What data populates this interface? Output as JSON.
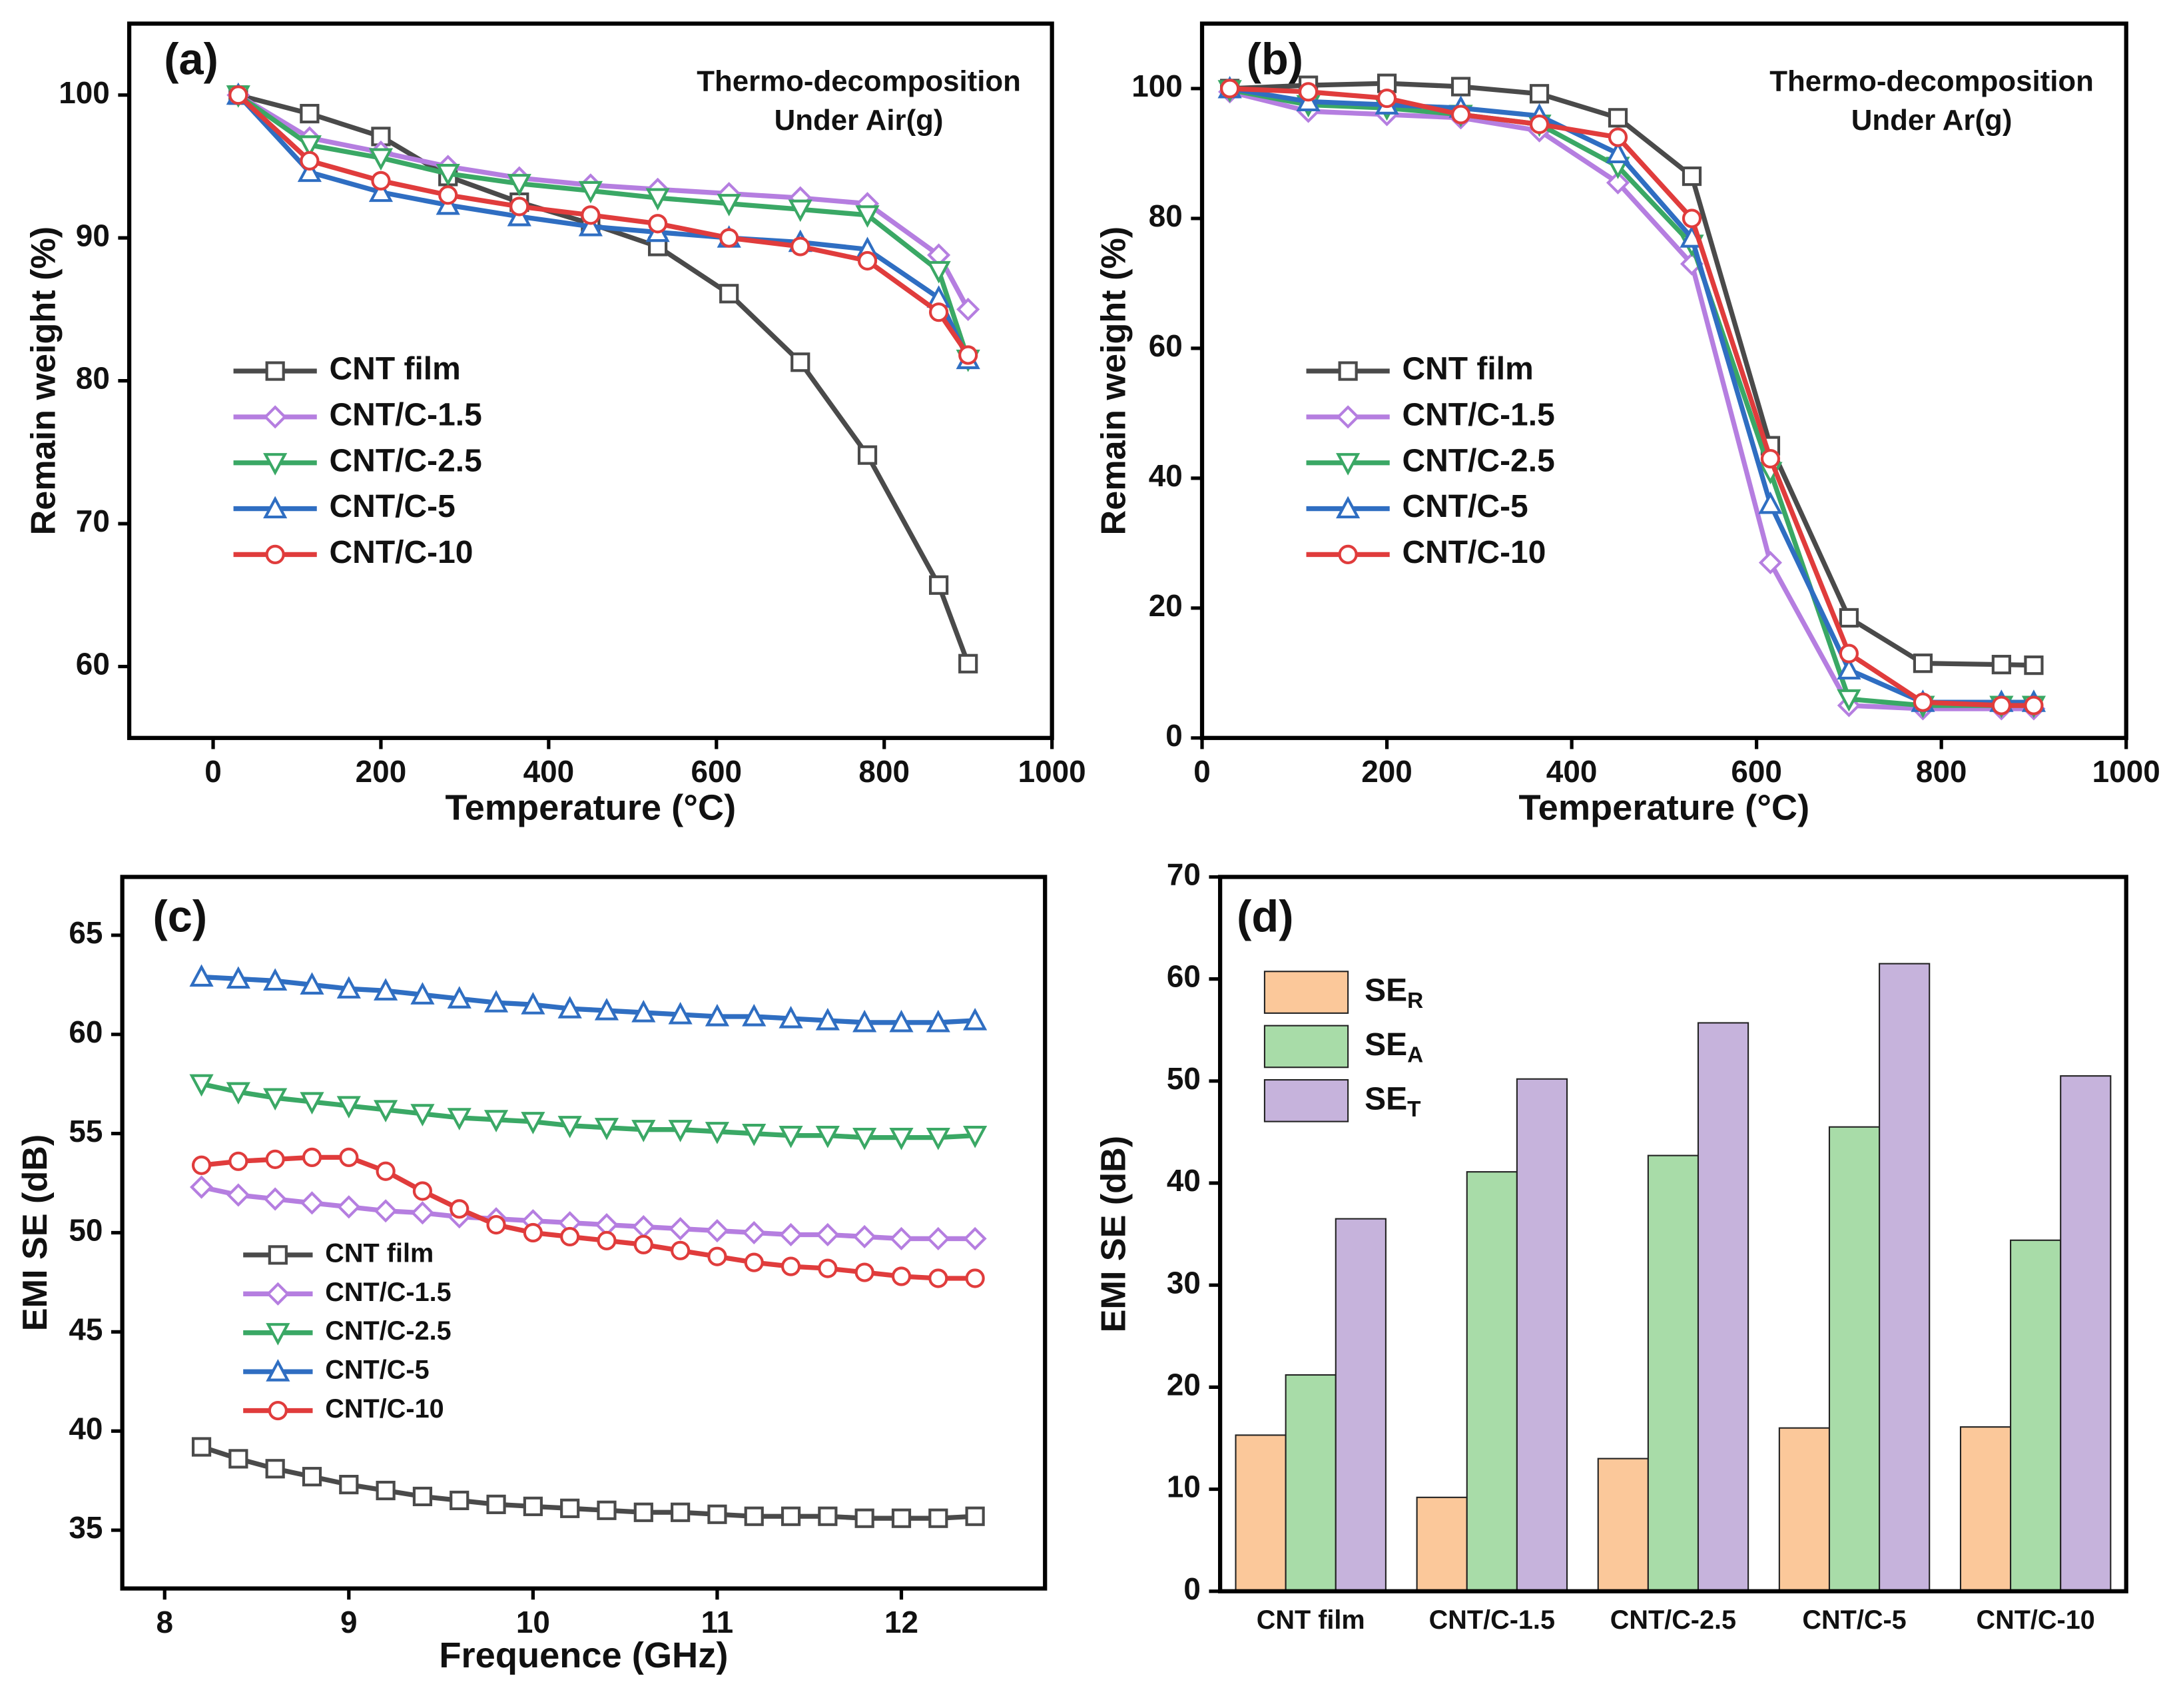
{
  "chart_data": [
    {
      "type": "line",
      "panel_label": "(a)",
      "annotation": [
        "Thermo-decomposition",
        "Under Air(g)"
      ],
      "xlabel": "Temperature (°C)",
      "ylabel": "Remain weight (%)",
      "xlim": [
        -100,
        1000
      ],
      "xticks": [
        0,
        200,
        400,
        600,
        800,
        1000
      ],
      "ylim": [
        55,
        105
      ],
      "yticks": [
        60,
        70,
        80,
        90,
        100
      ],
      "x": [
        30,
        115,
        200,
        280,
        365,
        450,
        530,
        615,
        700,
        780,
        865,
        900
      ],
      "series": [
        {
          "name": "CNT film",
          "color": "#4a4a4a",
          "marker": "square",
          "values": [
            100,
            98.7,
            97.1,
            94.3,
            92.5,
            91.0,
            89.4,
            86.1,
            81.3,
            74.8,
            65.7,
            60.2
          ]
        },
        {
          "name": "CNT/C-1.5",
          "color": "#b57ee0",
          "marker": "diamond",
          "values": [
            100,
            97.0,
            96.0,
            95.0,
            94.2,
            93.7,
            93.4,
            93.1,
            92.8,
            92.4,
            88.8,
            85.0
          ]
        },
        {
          "name": "CNT/C-2.5",
          "color": "#3aa865",
          "marker": "triangle-down",
          "values": [
            100,
            96.5,
            95.6,
            94.5,
            93.8,
            93.3,
            92.8,
            92.4,
            92.0,
            91.6,
            87.7,
            81.5
          ]
        },
        {
          "name": "CNT/C-5",
          "color": "#2f6ec2",
          "marker": "triangle-up",
          "values": [
            100,
            94.6,
            93.2,
            92.3,
            91.5,
            90.8,
            90.4,
            90.0,
            89.7,
            89.2,
            85.8,
            81.5
          ]
        },
        {
          "name": "CNT/C-10",
          "color": "#e03c3c",
          "marker": "circle",
          "values": [
            100,
            95.4,
            94.0,
            93.0,
            92.2,
            91.6,
            91.0,
            90.0,
            89.4,
            88.4,
            84.8,
            81.8
          ]
        }
      ]
    },
    {
      "type": "line",
      "panel_label": "(b)",
      "annotation": [
        "Thermo-decomposition",
        "Under Ar(g)"
      ],
      "xlabel": "Temperature (°C)",
      "ylabel": "Remain weight (%)",
      "xlim": [
        0,
        1000
      ],
      "xticks": [
        0,
        200,
        400,
        600,
        800,
        1000
      ],
      "ylim": [
        0,
        110
      ],
      "yticks": [
        0,
        20,
        40,
        60,
        80,
        100
      ],
      "x": [
        30,
        115,
        200,
        280,
        365,
        450,
        530,
        615,
        700,
        780,
        865,
        900
      ],
      "series": [
        {
          "name": "CNT film",
          "color": "#4a4a4a",
          "marker": "square",
          "values": [
            100,
            100.5,
            100.8,
            100.3,
            99.2,
            95.5,
            86.5,
            45,
            18.5,
            11.5,
            11.3,
            11.2
          ]
        },
        {
          "name": "CNT/C-1.5",
          "color": "#b57ee0",
          "marker": "diamond",
          "values": [
            99.5,
            96.5,
            96,
            95.5,
            93.5,
            85.5,
            73,
            27,
            5,
            4.5,
            4.5,
            4.5
          ]
        },
        {
          "name": "CNT/C-2.5",
          "color": "#3aa865",
          "marker": "triangle-down",
          "values": [
            99.8,
            97.5,
            97,
            96,
            94.5,
            88,
            76,
            41,
            6,
            5,
            5,
            5
          ]
        },
        {
          "name": "CNT/C-5",
          "color": "#2f6ec2",
          "marker": "triangle-up",
          "values": [
            100,
            98,
            97.5,
            97,
            95.8,
            90,
            77,
            36,
            10.5,
            5.5,
            5.5,
            5.5
          ]
        },
        {
          "name": "CNT/C-10",
          "color": "#e03c3c",
          "marker": "circle",
          "values": [
            100,
            99.5,
            98.5,
            96,
            94.5,
            92.5,
            80,
            43,
            13,
            5.5,
            5,
            5
          ]
        }
      ]
    },
    {
      "type": "line",
      "panel_label": "(c)",
      "xlabel": "Frequence (GHz)",
      "ylabel": "EMI SE (dB)",
      "xlim": [
        7.77,
        12.78
      ],
      "xticks": [
        8,
        9,
        10,
        11,
        12
      ],
      "ylim": [
        32.06,
        67.94
      ],
      "yticks": [
        35,
        40,
        45,
        50,
        55,
        60,
        65
      ],
      "x": [
        8.2,
        8.4,
        8.6,
        8.8,
        9.0,
        9.2,
        9.4,
        9.6,
        9.8,
        10.0,
        10.2,
        10.4,
        10.6,
        10.8,
        11.0,
        11.2,
        11.4,
        11.6,
        11.8,
        12.0,
        12.2,
        12.4
      ],
      "series": [
        {
          "name": "CNT film",
          "color": "#4a4a4a",
          "marker": "square",
          "values": [
            39.2,
            38.6,
            38.1,
            37.7,
            37.3,
            37.0,
            36.7,
            36.5,
            36.3,
            36.2,
            36.1,
            36.0,
            35.9,
            35.9,
            35.8,
            35.7,
            35.7,
            35.7,
            35.6,
            35.6,
            35.6,
            35.7
          ]
        },
        {
          "name": "CNT/C-1.5",
          "color": "#b57ee0",
          "marker": "diamond",
          "values": [
            52.3,
            51.9,
            51.7,
            51.5,
            51.3,
            51.1,
            51.0,
            50.8,
            50.7,
            50.6,
            50.5,
            50.4,
            50.3,
            50.2,
            50.1,
            50.0,
            49.9,
            49.9,
            49.8,
            49.7,
            49.7,
            49.7
          ]
        },
        {
          "name": "CNT/C-2.5",
          "color": "#3aa865",
          "marker": "triangle-down",
          "values": [
            57.5,
            57.1,
            56.8,
            56.6,
            56.4,
            56.2,
            56.0,
            55.8,
            55.7,
            55.6,
            55.4,
            55.3,
            55.2,
            55.2,
            55.1,
            55.0,
            54.9,
            54.9,
            54.8,
            54.8,
            54.8,
            54.9
          ]
        },
        {
          "name": "CNT/C-5",
          "color": "#2f6ec2",
          "marker": "triangle-up",
          "values": [
            62.9,
            62.8,
            62.7,
            62.5,
            62.3,
            62.2,
            62.0,
            61.8,
            61.6,
            61.5,
            61.3,
            61.2,
            61.1,
            61.0,
            60.9,
            60.9,
            60.8,
            60.7,
            60.6,
            60.6,
            60.6,
            60.7
          ]
        },
        {
          "name": "CNT/C-10",
          "color": "#e03c3c",
          "marker": "circle",
          "values": [
            53.4,
            53.6,
            53.7,
            53.8,
            53.8,
            53.1,
            52.1,
            51.2,
            50.4,
            50.0,
            49.8,
            49.6,
            49.4,
            49.1,
            48.8,
            48.5,
            48.3,
            48.2,
            48.0,
            47.8,
            47.7,
            47.7
          ]
        }
      ]
    },
    {
      "type": "bar",
      "panel_label": "(d)",
      "ylabel": "EMI SE (dB)",
      "ylim": [
        0,
        70
      ],
      "yticks": [
        0,
        10,
        20,
        30,
        40,
        50,
        60,
        70
      ],
      "categories": [
        "CNT film",
        "CNT/C-1.5",
        "CNT/C-2.5",
        "CNT/C-5",
        "CNT/C-10"
      ],
      "series": [
        {
          "name": "SER",
          "color": "#fbc89a",
          "values": [
            15.3,
            9.2,
            13.0,
            16.0,
            16.1
          ]
        },
        {
          "name": "SEA",
          "color": "#a8dca8",
          "values": [
            21.2,
            41.1,
            42.7,
            45.5,
            34.4
          ]
        },
        {
          "name": "SET",
          "color": "#c6b3dc",
          "values": [
            36.5,
            50.2,
            55.7,
            61.5,
            50.5
          ]
        }
      ]
    }
  ]
}
